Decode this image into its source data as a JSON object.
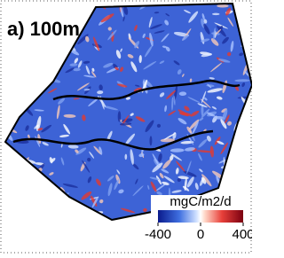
{
  "panel_label": "a) 100m",
  "colorbar": {
    "label": "mgC/m2/d",
    "lim": [
      -400,
      400
    ],
    "ticks": [
      -400,
      0,
      400
    ]
  }
}
